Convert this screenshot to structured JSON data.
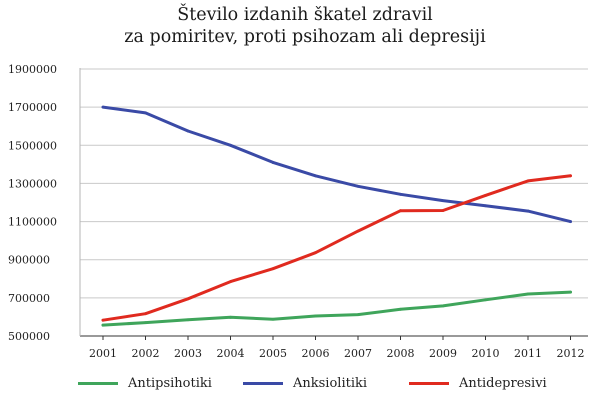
{
  "chart_data": {
    "type": "line",
    "title": "Število izdanih škatel zdravil za pomiritev, proti psihozam ali depresiji",
    "title_lines": [
      "Število izdanih škatel zdravil",
      "za pomiritev, proti psihozam ali depresiji"
    ],
    "xlabel": "",
    "ylabel": "",
    "x": [
      "2001",
      "2002",
      "2003",
      "2004",
      "2005",
      "2006",
      "2007",
      "2008",
      "2009",
      "2010",
      "2011",
      "2012"
    ],
    "ylim": [
      500000,
      1900000
    ],
    "yticks": [
      500000,
      700000,
      900000,
      1100000,
      1300000,
      1500000,
      1700000,
      1900000
    ],
    "ytick_labels": [
      "500000",
      "700000",
      "900000",
      "1100000",
      "1300000",
      "1500000",
      "1700000",
      "1900000"
    ],
    "grid": "horizontal",
    "legend_position": "bottom",
    "series": [
      {
        "name": "Antipsihotiki",
        "color": "#3fa55b",
        "values": [
          557000,
          570000,
          585000,
          598000,
          588000,
          605000,
          612000,
          640000,
          658000,
          690000,
          720000,
          730000
        ]
      },
      {
        "name": "Anksiolitiki",
        "color": "#3a4aa6",
        "values": [
          1700000,
          1670000,
          1575000,
          1500000,
          1410000,
          1340000,
          1285000,
          1243000,
          1210000,
          1183000,
          1155000,
          1100000
        ]
      },
      {
        "name": "Antidepresivi",
        "color": "#e02a1f",
        "values": [
          583000,
          617000,
          695000,
          785000,
          853000,
          937000,
          1050000,
          1157000,
          1158000,
          1237000,
          1313000,
          1340000
        ]
      }
    ]
  }
}
